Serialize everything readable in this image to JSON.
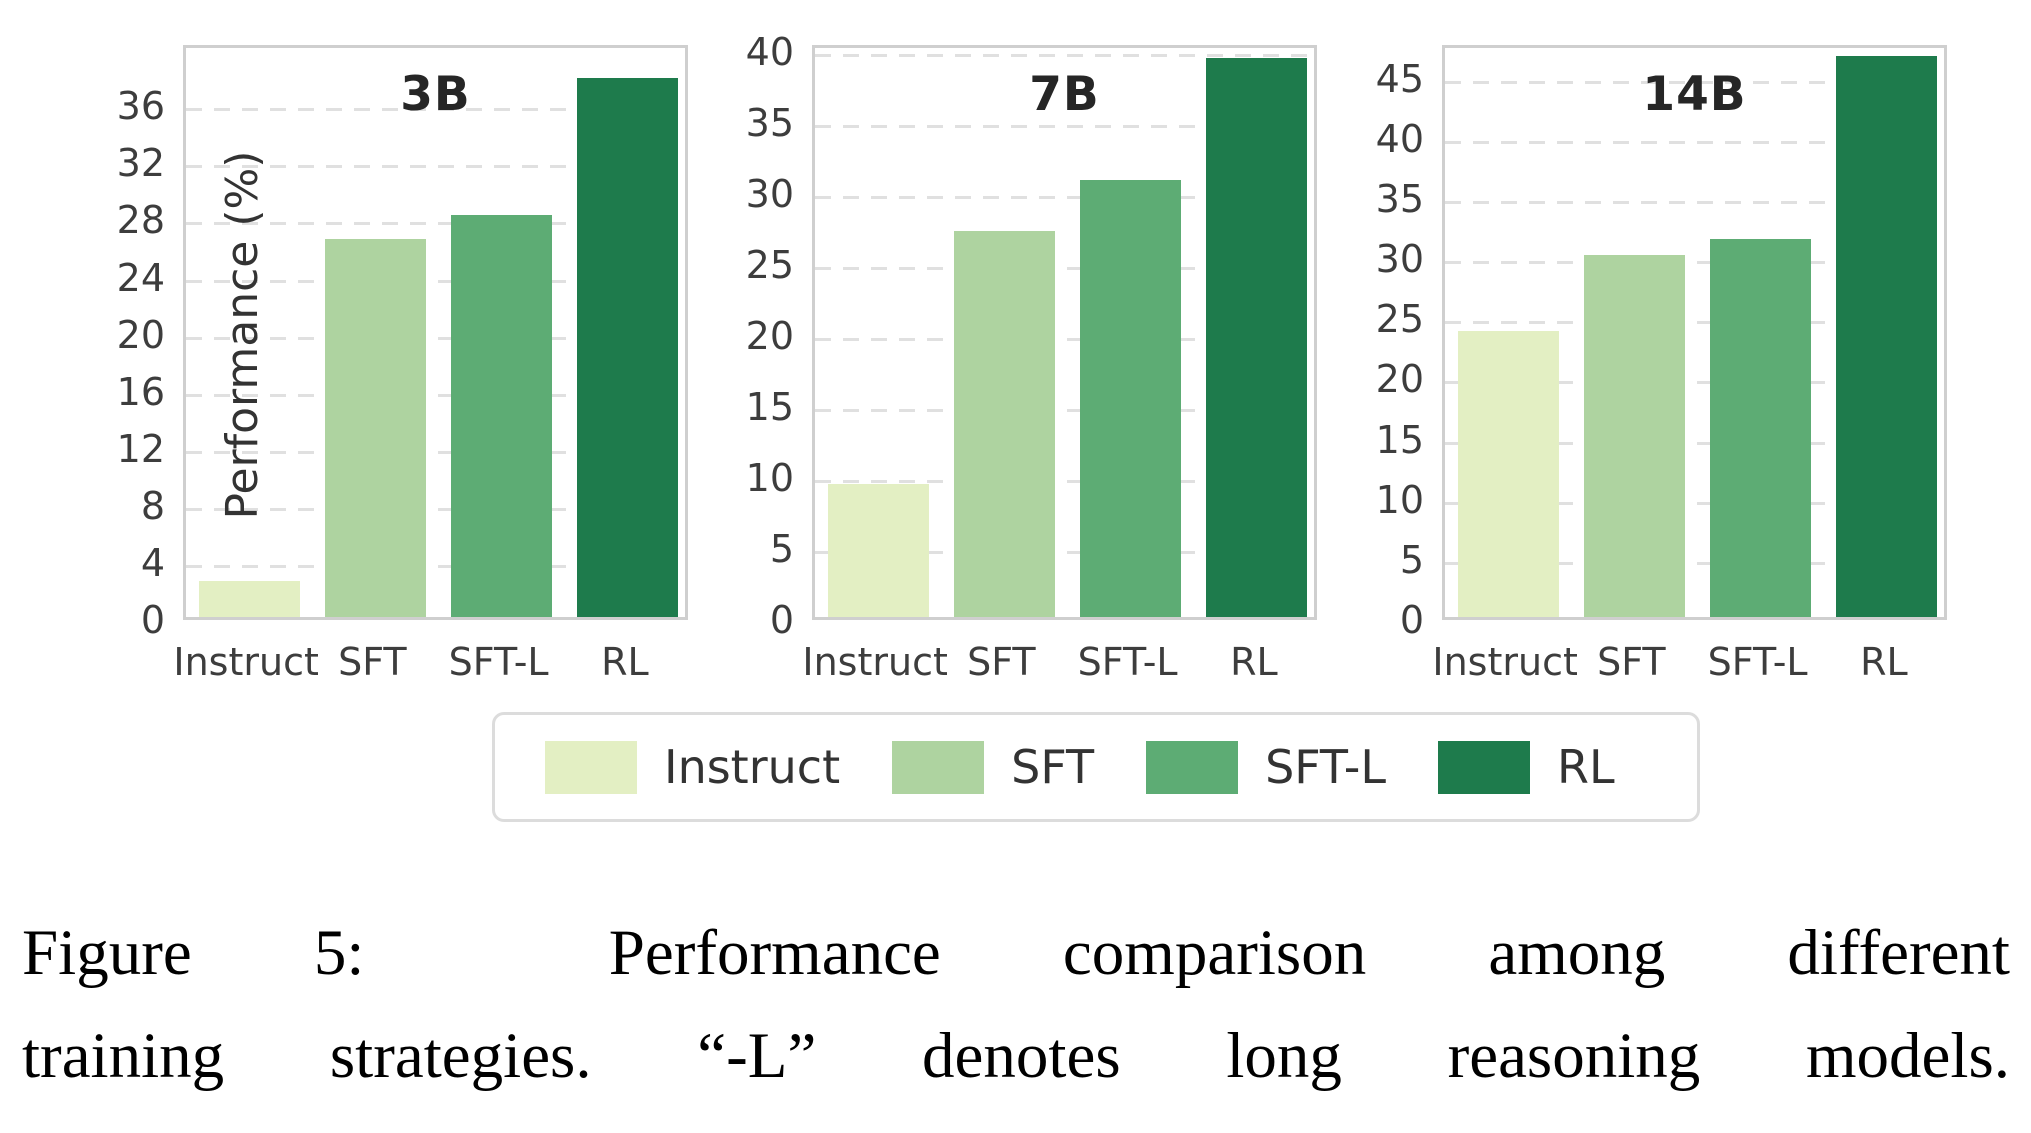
{
  "figure": {
    "ylabel": "Performance (%)",
    "categories": [
      "Instruct",
      "SFT",
      "SFT-L",
      "RL"
    ]
  },
  "palette": {
    "instruct": "#e3efc3",
    "sft": "#aed3a0",
    "sft_l": "#5dac74",
    "rl": "#1e7b4c",
    "grid": "#e0e0e0",
    "axis_border": "#cfcfcf",
    "tick_text": "#3d3d3d"
  },
  "chart_data": [
    {
      "type": "bar",
      "title": "3B",
      "categories": [
        "Instruct",
        "SFT",
        "SFT-L",
        "RL"
      ],
      "values": [
        2.5,
        26.5,
        28.2,
        37.8
      ],
      "colors": [
        "#e3efc3",
        "#aed3a0",
        "#5dac74",
        "#1e7b4c"
      ],
      "xlabel": "",
      "ylabel": "Performance (%)",
      "yticks": [
        0,
        4,
        8,
        12,
        16,
        20,
        24,
        28,
        32,
        36
      ],
      "ylim": [
        0,
        40.3
      ],
      "grid": "horizontal-dashed",
      "legend_position": "below-figure"
    },
    {
      "type": "bar",
      "title": "7B",
      "categories": [
        "Instruct",
        "SFT",
        "SFT-L",
        "RL"
      ],
      "values": [
        9.4,
        27.2,
        30.8,
        39.4
      ],
      "colors": [
        "#e3efc3",
        "#aed3a0",
        "#5dac74",
        "#1e7b4c"
      ],
      "xlabel": "",
      "ylabel": "",
      "yticks": [
        0,
        5,
        10,
        15,
        20,
        25,
        30,
        35,
        40
      ],
      "ylim": [
        0,
        40.5
      ],
      "grid": "horizontal-dashed",
      "legend_position": "below-figure"
    },
    {
      "type": "bar",
      "title": "14B",
      "categories": [
        "Instruct",
        "SFT",
        "SFT-L",
        "RL"
      ],
      "values": [
        23.8,
        30.1,
        31.4,
        46.6
      ],
      "colors": [
        "#e3efc3",
        "#aed3a0",
        "#5dac74",
        "#1e7b4c"
      ],
      "xlabel": "",
      "ylabel": "",
      "yticks": [
        0,
        5,
        10,
        15,
        20,
        25,
        30,
        35,
        40,
        45
      ],
      "ylim": [
        0,
        47.8
      ],
      "grid": "horizontal-dashed",
      "legend_position": "below-figure"
    }
  ],
  "legend": {
    "items": [
      {
        "label": "Instruct",
        "color": "#e3efc3"
      },
      {
        "label": "SFT",
        "color": "#aed3a0"
      },
      {
        "label": "SFT-L",
        "color": "#5dac74"
      },
      {
        "label": "RL",
        "color": "#1e7b4c"
      }
    ]
  },
  "caption": {
    "line1": "Figure 5:  Performance comparison among different",
    "line2": "training strategies. “-L” denotes long reasoning models."
  }
}
